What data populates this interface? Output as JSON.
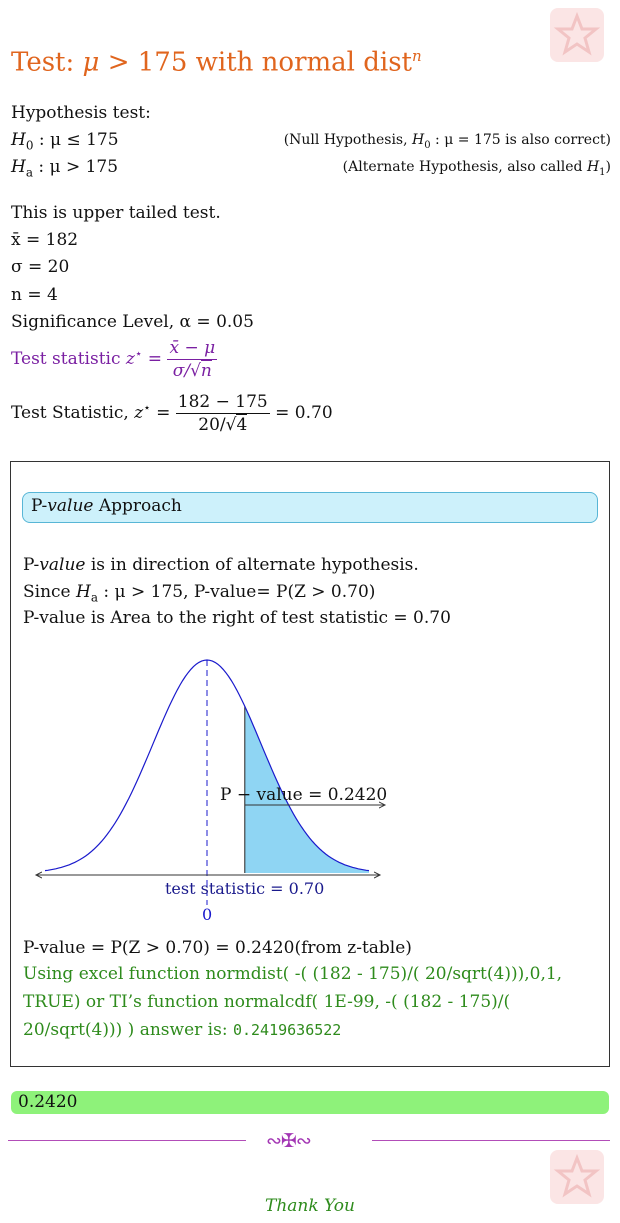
{
  "title": {
    "prefix": "Test: ",
    "mu": "μ",
    "rest": " > 175 with normal dist",
    "sup": "n"
  },
  "hypothesis": {
    "heading": "Hypothesis test:",
    "h0": {
      "H": "H",
      "sub": "0",
      "rest": " : μ ≤ 175",
      "note_pre": "(Null Hypothesis, ",
      "note_H": "H",
      "note_sub": "0",
      "note_post": " : μ = 175 is also correct)"
    },
    "ha": {
      "H": "H",
      "sub": "a",
      "rest": " : μ > 175",
      "note_pre": "(Alternate Hypothesis, also called ",
      "note_H": "H",
      "note_sub": "1",
      "note_post": ")"
    }
  },
  "given": {
    "tail_text": "This is upper tailed test.",
    "xbar": "x̄ = 182",
    "sigma": "σ = 20",
    "n": "n = 4",
    "alpha_label": "Significance Level, ",
    "alpha_value": "α = 0.05"
  },
  "formula": {
    "label": "Test statistic ",
    "z": "z",
    "star": "⋆",
    "eq": " = ",
    "num": "x̄ − μ",
    "den_pre": "σ/√",
    "den_rad": "n"
  },
  "calc": {
    "label": "Test Statistic, ",
    "z": "z",
    "star": "⋆",
    "eq": " = ",
    "num": "182 − 175",
    "den_pre": "20/√",
    "den_rad": "4",
    "result": " = 0.70"
  },
  "pvalue_section": {
    "badge_p": "P-",
    "badge_value": "value",
    "badge_rest": " Approach",
    "line1_p": "P-",
    "line1_value": "value",
    "line1_rest": " is in direction of alternate hypothesis.",
    "line2_pre": "Since ",
    "line2_H": "H",
    "line2_sub": "a",
    "line2_mid": " : μ > 175, P-value= ",
    "line2_expr": "P(Z > 0.70)",
    "line3": "P-value is Area to the right of test statistic = 0.70",
    "result_line": "P-value = P(Z > 0.70) = 0.2420(from z-table)",
    "excel_1": "Using excel function normdist( -( (182 - 175)/( 20/sqrt(4))),0,1,",
    "excel_2": "TRUE) or TI’s function normalcdf( 1E-99, -( (182 - 175)/(",
    "excel_3": "20/sqrt(4))) ) answer is: ",
    "excel_answer": "0.2419636522"
  },
  "graph": {
    "pvalue_label": "P − value = 0.2420",
    "stat_label": "test statistic = 0.70",
    "zero_label": "0",
    "z_stat": 0.7,
    "mean": 0,
    "shade_color": "#8fd5f3",
    "curve_color": "#1a1acc"
  },
  "answer": "0.2420",
  "thanks": "Thank You"
}
